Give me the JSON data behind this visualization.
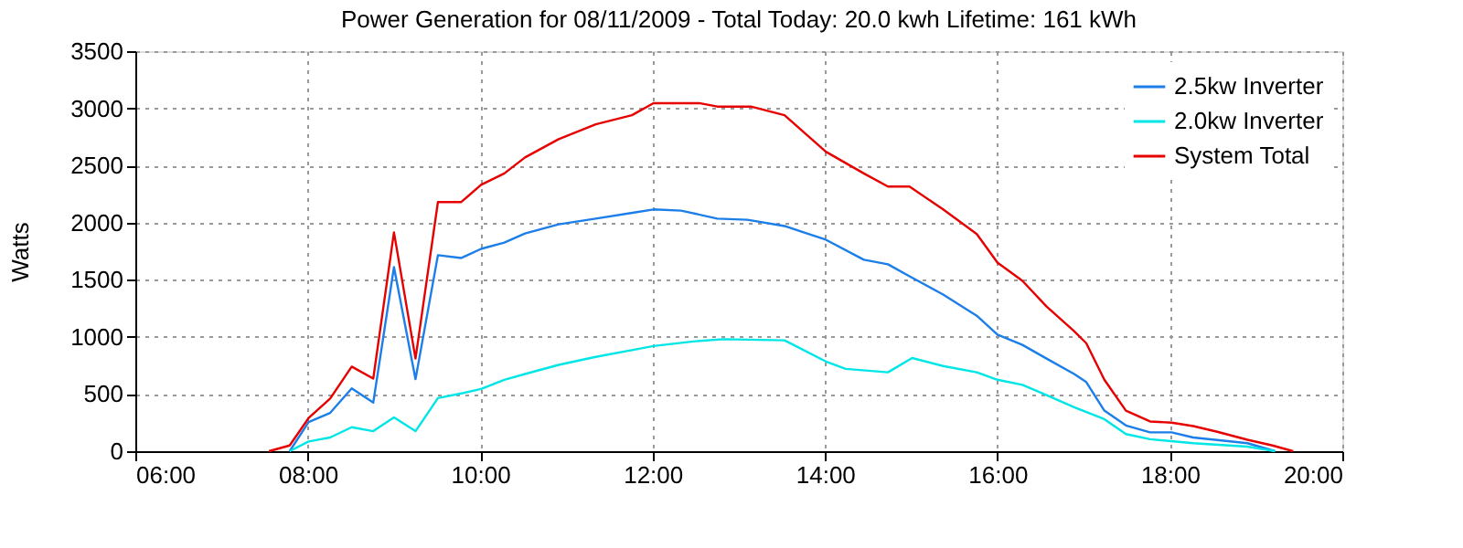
{
  "chart_data": {
    "type": "line",
    "title": "Power Generation for 08/11/2009 - Total Today: 20.0 kwh   Lifetime: 161 kWh",
    "ylabel": "Watts",
    "xlim": [
      6,
      20
    ],
    "xticks": [
      {
        "value": 6,
        "label": "06:00"
      },
      {
        "value": 8,
        "label": "08:00"
      },
      {
        "value": 10,
        "label": "10:00"
      },
      {
        "value": 12,
        "label": "12:00"
      },
      {
        "value": 14,
        "label": "14:00"
      },
      {
        "value": 16,
        "label": "16:00"
      },
      {
        "value": 18,
        "label": "18:00"
      },
      {
        "value": 20,
        "label": "20:00"
      }
    ],
    "ylim": [
      0,
      3500
    ],
    "yticks": [
      0,
      500,
      1000,
      1500,
      2000,
      2500,
      3000,
      3500
    ],
    "grid": true,
    "legend": "top right",
    "marker": "none",
    "line_style": "solid",
    "series": [
      {
        "name": "2.5kw Inverter",
        "color": "#1c7ee8",
        "x": [
          7.79,
          8.01,
          8.26,
          8.51,
          8.76,
          9.0,
          9.25,
          9.51,
          9.78,
          10.01,
          10.28,
          10.52,
          10.91,
          11.34,
          11.8,
          12.01,
          12.33,
          12.75,
          13.1,
          13.53,
          14.01,
          14.45,
          14.73,
          14.98,
          15.37,
          15.76,
          16.0,
          16.29,
          16.57,
          16.89,
          17.03,
          17.24,
          17.49,
          17.77,
          18.02,
          18.27,
          18.9,
          19.22
        ],
        "values": [
          0,
          255,
          335,
          550,
          425,
          1610,
          630,
          1715,
          1690,
          1770,
          1825,
          1905,
          1985,
          2035,
          2090,
          2115,
          2105,
          2035,
          2025,
          1970,
          1850,
          1675,
          1635,
          1530,
          1370,
          1185,
          1020,
          930,
          810,
          675,
          605,
          355,
          225,
          165,
          165,
          120,
          70,
          0
        ]
      },
      {
        "name": "2.0kw Inverter",
        "color": "#00e6e6",
        "x": [
          7.79,
          8.01,
          8.26,
          8.51,
          8.76,
          9.0,
          9.25,
          9.51,
          9.78,
          10.01,
          10.28,
          10.52,
          10.91,
          11.34,
          11.8,
          12.01,
          12.47,
          12.82,
          13.53,
          14.01,
          14.24,
          14.73,
          15.01,
          15.37,
          15.76,
          16.0,
          16.29,
          16.57,
          16.89,
          17.24,
          17.49,
          17.77,
          18.27,
          18.9,
          19.22
        ],
        "values": [
          0,
          85,
          120,
          210,
          175,
          295,
          175,
          465,
          505,
          545,
          625,
          675,
          755,
          825,
          890,
          920,
          960,
          980,
          970,
          785,
          720,
          690,
          815,
          745,
          690,
          625,
          580,
          490,
          385,
          280,
          150,
          105,
          70,
          40,
          0
        ]
      },
      {
        "name": "System Total",
        "color": "#e60000",
        "x": [
          7.55,
          7.79,
          8.01,
          8.26,
          8.51,
          8.76,
          9.0,
          9.25,
          9.51,
          9.78,
          10.01,
          10.28,
          10.52,
          10.91,
          11.34,
          11.76,
          12.01,
          12.54,
          12.75,
          13.14,
          13.53,
          14.01,
          14.45,
          14.73,
          14.98,
          15.37,
          15.76,
          16.0,
          16.29,
          16.57,
          16.89,
          17.03,
          17.24,
          17.49,
          17.77,
          18.02,
          18.27,
          18.55,
          18.9,
          19.19,
          19.43
        ],
        "values": [
          0,
          50,
          290,
          460,
          740,
          635,
          1915,
          810,
          2180,
          2180,
          2330,
          2430,
          2570,
          2730,
          2860,
          2940,
          3045,
          3045,
          3015,
          3015,
          2940,
          2620,
          2430,
          2315,
          2315,
          2115,
          1900,
          1650,
          1490,
          1265,
          1050,
          945,
          625,
          355,
          260,
          250,
          220,
          170,
          100,
          50,
          0
        ]
      }
    ]
  }
}
